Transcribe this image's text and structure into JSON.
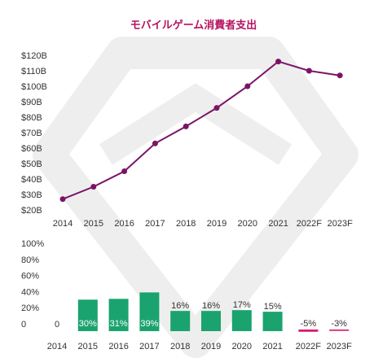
{
  "title": "モバイルゲーム消費者支出",
  "colors": {
    "line": "#7b1466",
    "accent": "#b5135f",
    "growth_positive": "#1aa36e",
    "growth_negative": "#e0156b",
    "axis_text": "#333333",
    "watermark": "#eeeeee"
  },
  "chart_data": [
    {
      "type": "line",
      "categories": [
        "2014",
        "2015",
        "2016",
        "2017",
        "2018",
        "2019",
        "2020",
        "2021",
        "2022F",
        "2023F"
      ],
      "series": [
        {
          "values": [
            27,
            35,
            45,
            63,
            74,
            86,
            100,
            116,
            110,
            107
          ]
        }
      ],
      "ytick_labels": [
        "$20B",
        "$30B",
        "$40B",
        "$50B",
        "$60B",
        "$70B",
        "$80B",
        "$90B",
        "$100B",
        "$110B",
        "$120B"
      ],
      "ylim": [
        20,
        120
      ],
      "grid": false
    },
    {
      "type": "bar",
      "categories": [
        "2014",
        "2015",
        "2016",
        "2017",
        "2018",
        "2019",
        "2020",
        "2021",
        "2022F",
        "2023F"
      ],
      "values": [
        0,
        30,
        31,
        39,
        16,
        16,
        17,
        15,
        -5,
        -3
      ],
      "value_labels": [
        "0",
        "30%",
        "31%",
        "39%",
        "16%",
        "16%",
        "17%",
        "15%",
        "-5%",
        "-3%"
      ],
      "ytick_labels": [
        "0",
        "20%",
        "40%",
        "60%",
        "80%",
        "100%"
      ],
      "ylim": [
        0,
        100
      ],
      "grid": false
    }
  ]
}
